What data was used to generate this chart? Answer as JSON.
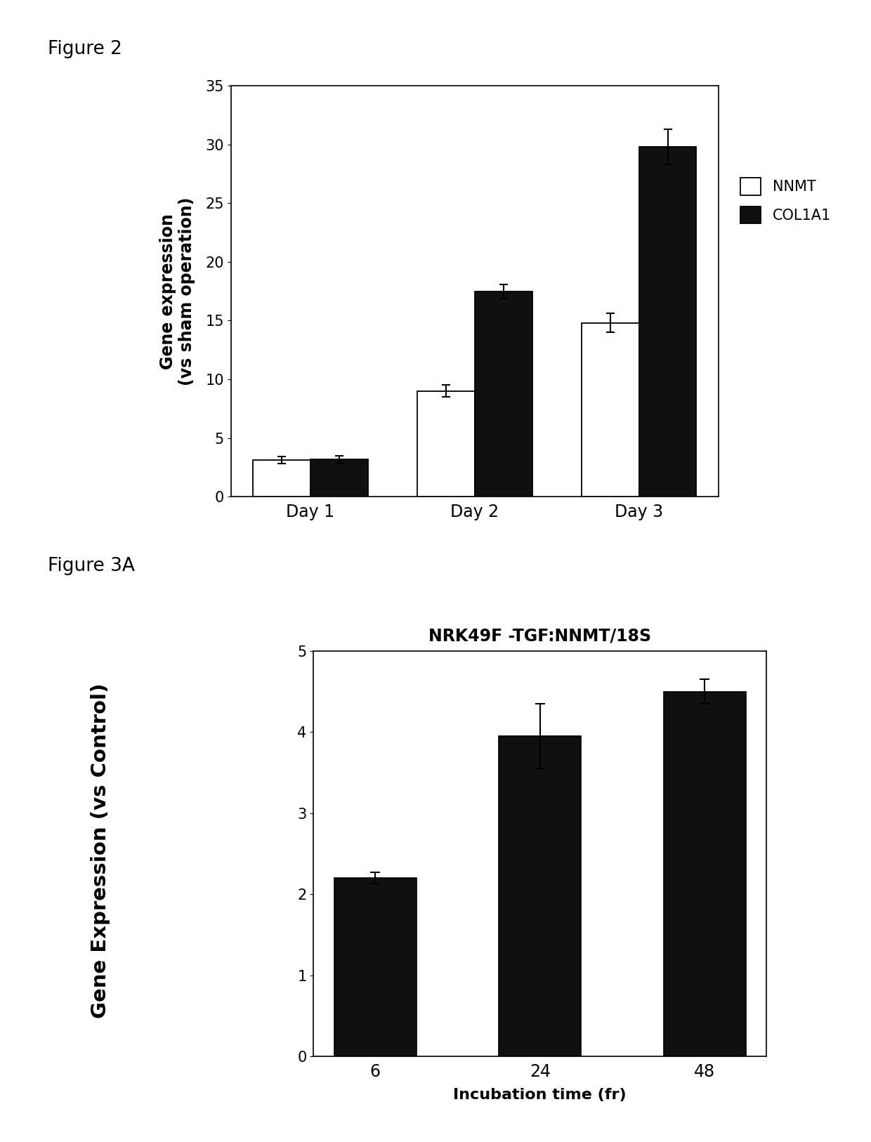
{
  "fig2": {
    "title": "Figure 2",
    "categories": [
      "Day 1",
      "Day 2",
      "Day 3"
    ],
    "nnmt_values": [
      3.1,
      9.0,
      14.8
    ],
    "nnmt_errors": [
      0.3,
      0.5,
      0.8
    ],
    "col1a1_values": [
      3.2,
      17.5,
      29.8
    ],
    "col1a1_errors": [
      0.3,
      0.6,
      1.5
    ],
    "ylabel": "Gene expression\n(vs sham operation)",
    "ylim": [
      0,
      35
    ],
    "yticks": [
      0,
      5,
      10,
      15,
      20,
      25,
      30,
      35
    ],
    "bar_width": 0.35,
    "nnmt_color": "#ffffff",
    "col1a1_color": "#111111",
    "legend_nnmt": "NNMT",
    "legend_col1a1": "COL1A1"
  },
  "fig3a": {
    "title": "Figure 3A",
    "chart_title": "NRK49F -TGF:NNMT/18S",
    "categories": [
      "6",
      "24",
      "48"
    ],
    "values": [
      2.2,
      3.95,
      4.5
    ],
    "errors": [
      0.07,
      0.4,
      0.15
    ],
    "ylabel": "Gene Expression (vs Control)",
    "xlabel": "Incubation time (fr)",
    "ylim": [
      0,
      5
    ],
    "yticks": [
      0,
      1,
      2,
      3,
      4,
      5
    ],
    "bar_width": 0.5,
    "bar_color": "#111111"
  },
  "background_color": "#ffffff",
  "edge_color": "#000000"
}
